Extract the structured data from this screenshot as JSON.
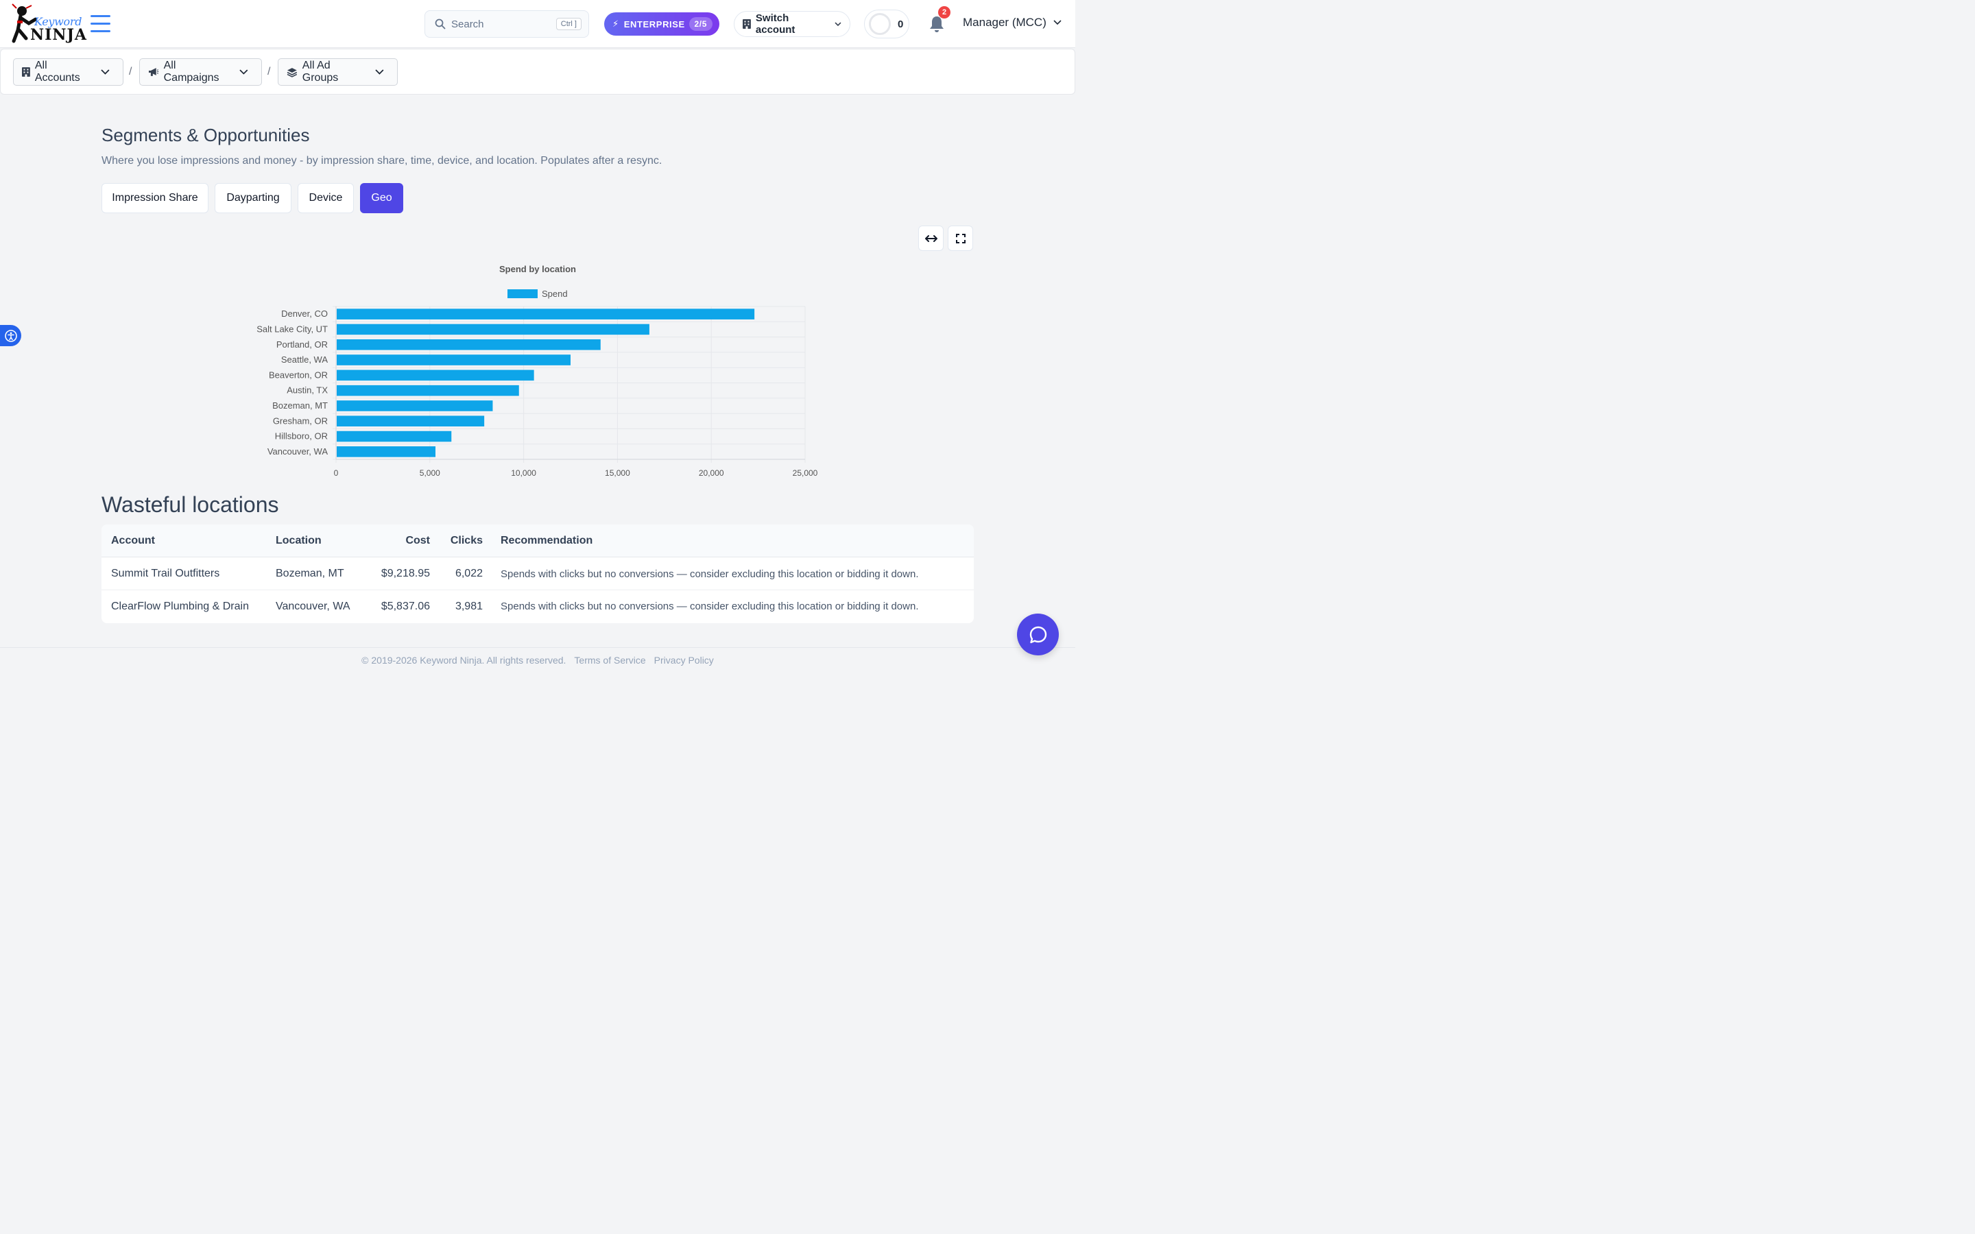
{
  "header": {
    "logo": {
      "word_top": "Keyword",
      "word_bottom": "NINJA"
    },
    "search": {
      "placeholder": "Search",
      "shortcut": "Ctrl ]"
    },
    "plan": {
      "label": "ENTERPRISE",
      "count": "2/5"
    },
    "switch_account": "Switch account",
    "credits": "0",
    "notifications_count": "2",
    "user": "Manager (MCC)",
    "accent_color": "#3b82f6"
  },
  "breadcrumb": {
    "accounts": "All Accounts",
    "campaigns": "All Campaigns",
    "ad_groups": "All Ad Groups",
    "separator": "/"
  },
  "section": {
    "title": "Segments & Opportunities",
    "subtitle": "Where you lose impressions and money - by impression share, time, device, and location. Populates after a resync.",
    "tabs": [
      {
        "label": "Impression Share",
        "active": false
      },
      {
        "label": "Dayparting",
        "active": false
      },
      {
        "label": "Device",
        "active": false
      },
      {
        "label": "Geo",
        "active": true
      }
    ],
    "active_color": "#4f46e5"
  },
  "chart_data": {
    "type": "bar",
    "orientation": "horizontal",
    "title": "Spend by location",
    "categories": [
      "Denver, CO",
      "Salt Lake City, UT",
      "Portland, OR",
      "Seattle, WA",
      "Beaverton, OR",
      "Austin, TX",
      "Bozeman, MT",
      "Gresham, OR",
      "Hillsboro, OR",
      "Vancouver, WA"
    ],
    "series": [
      {
        "name": "Spend",
        "color": "#0ea5e9",
        "values": [
          22300,
          16700,
          14100,
          12500,
          10550,
          9750,
          8350,
          7900,
          6150,
          5300
        ]
      }
    ],
    "xlim": [
      0,
      25000
    ],
    "xticks": [
      "0",
      "5,000",
      "10,000",
      "15,000",
      "20,000",
      "25,000"
    ],
    "xtick_values": [
      0,
      5000,
      10000,
      15000,
      20000,
      25000
    ],
    "legend": "top",
    "grid": true
  },
  "wasteful": {
    "title": "Wasteful locations",
    "columns": {
      "account": "Account",
      "location": "Location",
      "cost": "Cost",
      "clicks": "Clicks",
      "recommendation": "Recommendation"
    },
    "rows": [
      {
        "account": "Summit Trail Outfitters",
        "location": "Bozeman, MT",
        "cost": "$9,218.95",
        "clicks": "6,022",
        "recommendation": "Spends with clicks but no conversions — consider excluding this location or bidding it down."
      },
      {
        "account": "ClearFlow Plumbing & Drain",
        "location": "Vancouver, WA",
        "cost": "$5,837.06",
        "clicks": "3,981",
        "recommendation": "Spends with clicks but no conversions — consider excluding this location or bidding it down."
      }
    ]
  },
  "footer": {
    "copyright": "© 2019-2026 Keyword Ninja. All rights reserved.",
    "terms": "Terms of Service",
    "privacy": "Privacy Policy"
  }
}
